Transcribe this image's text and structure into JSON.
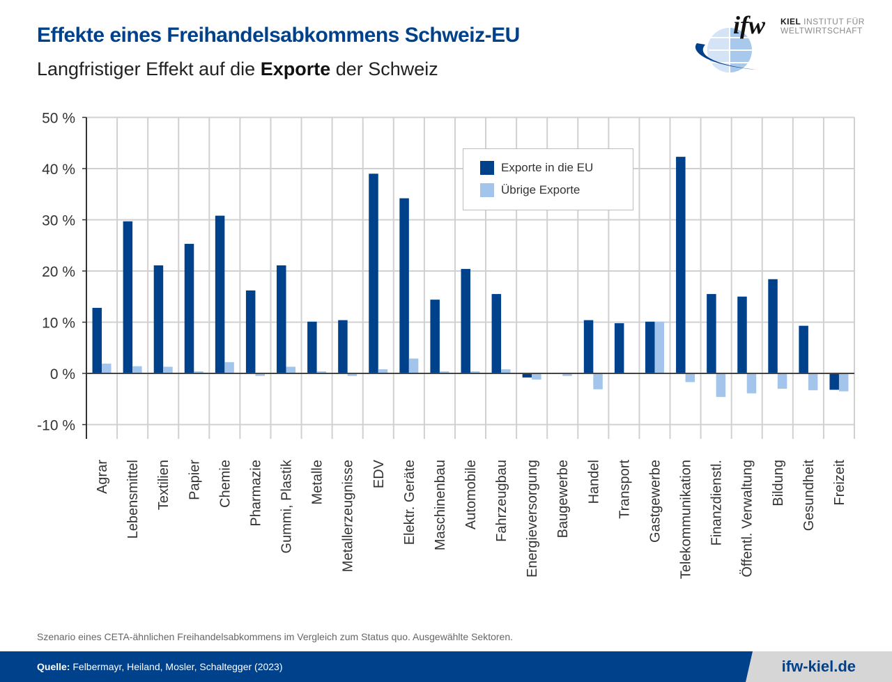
{
  "header": {
    "title": "Effekte eines Freihandelsabkommens Schweiz-EU",
    "subtitle_pre": "Langfristiger Effekt auf die ",
    "subtitle_bold": "Exporte",
    "subtitle_post": " der Schweiz"
  },
  "logo": {
    "mark": "ifw",
    "line1_bold": "KIEL",
    "line1_rest": " INSTITUT FÜR",
    "line2": "WELTWIRTSCHAFT"
  },
  "colors": {
    "brand": "#00418b",
    "eu": "#00418b",
    "other": "#a3c5eb",
    "grid": "#d0d0d0"
  },
  "chart_data": {
    "type": "bar",
    "title": "Langfristiger Effekt auf die Exporte der Schweiz",
    "xlabel": "",
    "ylabel": "",
    "ylim": [
      -12,
      50
    ],
    "yticks": [
      50,
      40,
      30,
      20,
      10,
      0,
      -10
    ],
    "ytick_labels": [
      "50 %",
      "40 %",
      "30 %",
      "20 %",
      "10 %",
      "0 %",
      "-10 %"
    ],
    "grid": true,
    "legend_position": "top-center",
    "categories": [
      "Agrar",
      "Lebensmittel",
      "Textilien",
      "Papier",
      "Chemie",
      "Pharmazie",
      "Gummi, Plastik",
      "Metalle",
      "Metallerzeugnisse",
      "EDV",
      "Elektr. Geräte",
      "Maschinenbau",
      "Automobile",
      "Fahrzeugbau",
      "Energieversorgung",
      "Baugewerbe",
      "Handel",
      "Transport",
      "Gastgewerbe",
      "Telekommunikation",
      "Finanzdienstl.",
      "Öffentl. Verwaltung",
      "Bildung",
      "Gesundheit",
      "Freizeit"
    ],
    "series": [
      {
        "name": "Exporte in die EU",
        "color": "#00418b",
        "values": [
          12.8,
          29.7,
          21.1,
          25.3,
          30.8,
          16.2,
          21.1,
          10.1,
          10.4,
          39.0,
          34.2,
          14.4,
          20.4,
          15.5,
          -0.8,
          0.0,
          10.4,
          9.8,
          10.1,
          42.3,
          15.5,
          15.0,
          18.4,
          9.3,
          -3.2
        ]
      },
      {
        "name": "Übrige Exporte",
        "color": "#a3c5eb",
        "values": [
          1.9,
          1.4,
          1.3,
          0.4,
          2.2,
          -0.5,
          1.3,
          0.4,
          -0.5,
          0.8,
          2.9,
          0.4,
          0.4,
          0.8,
          -1.2,
          -0.5,
          -3.1,
          0.0,
          10.1,
          -1.7,
          -4.6,
          -3.9,
          -3.0,
          -3.3,
          -3.5
        ]
      }
    ]
  },
  "footer": {
    "note": "Szenario eines CETA-ähnlichen Freihandelsabkommens im Vergleich zum Status quo. Ausgewählte Sektoren.",
    "source_label": "Quelle:",
    "source_text": " Felbermayr, Heiland, Mosler, Schaltegger (2023)",
    "website": "ifw-kiel.de"
  }
}
